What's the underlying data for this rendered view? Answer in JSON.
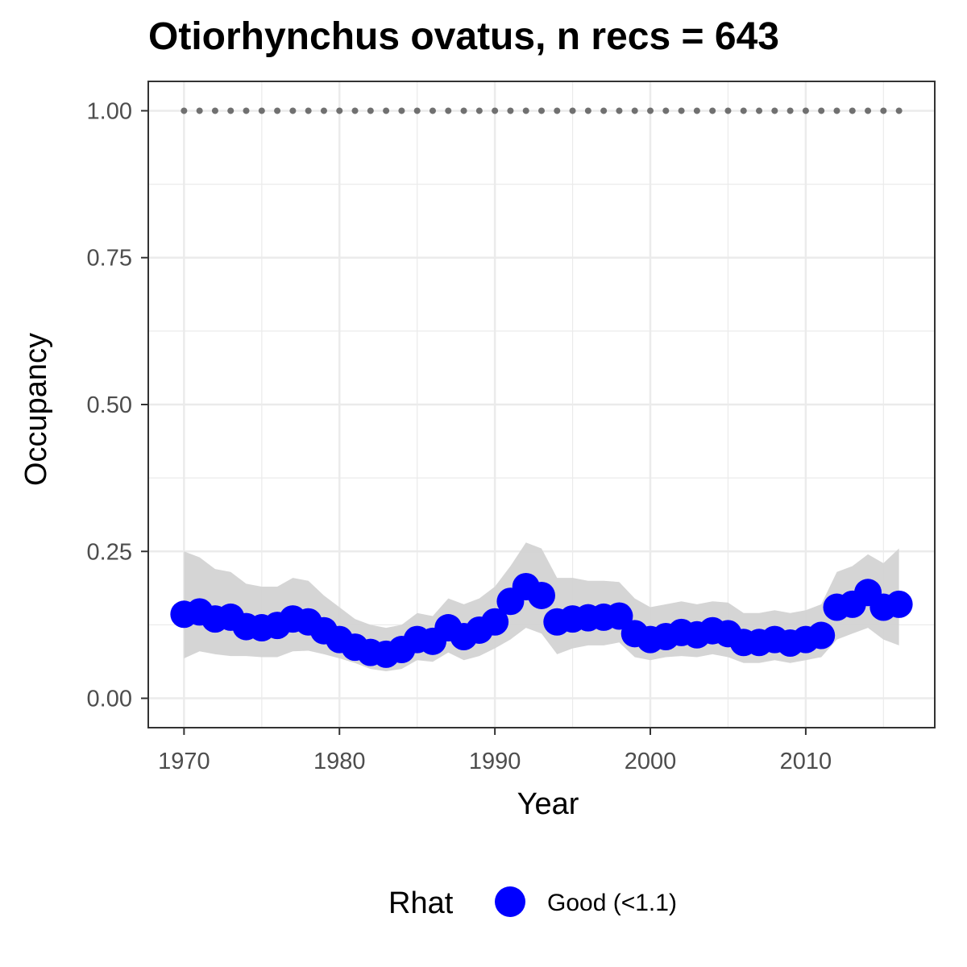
{
  "chart_data": {
    "type": "line",
    "title": "Otiorhynchus ovatus, n recs = 643",
    "xlabel": "Year",
    "ylabel": "Occupancy",
    "xlim": [
      1967.7,
      2018.3
    ],
    "ylim": [
      -0.05,
      1.05
    ],
    "x_ticks": [
      1970,
      1980,
      1990,
      2000,
      2010
    ],
    "x_tick_labels": [
      "1970",
      "1980",
      "1990",
      "2000",
      "2010"
    ],
    "y_ticks": [
      0,
      0.25,
      0.5,
      0.75,
      1.0
    ],
    "y_tick_labels": [
      "0.00",
      "0.25",
      "0.50",
      "0.75",
      "1.00"
    ],
    "grid": true,
    "x": [
      1970,
      1971,
      1972,
      1973,
      1974,
      1975,
      1976,
      1977,
      1978,
      1979,
      1980,
      1981,
      1982,
      1983,
      1984,
      1985,
      1986,
      1987,
      1988,
      1989,
      1990,
      1991,
      1992,
      1993,
      1994,
      1995,
      1996,
      1997,
      1998,
      1999,
      2000,
      2001,
      2002,
      2003,
      2004,
      2005,
      2006,
      2007,
      2008,
      2009,
      2010,
      2011,
      2012,
      2013,
      2014,
      2015,
      2016
    ],
    "series": [
      {
        "name": "Good (<1.1)",
        "color": "#0000ff",
        "values": [
          0.143,
          0.147,
          0.135,
          0.138,
          0.122,
          0.12,
          0.124,
          0.135,
          0.13,
          0.115,
          0.1,
          0.087,
          0.078,
          0.075,
          0.083,
          0.1,
          0.097,
          0.12,
          0.105,
          0.116,
          0.13,
          0.165,
          0.19,
          0.175,
          0.13,
          0.135,
          0.137,
          0.138,
          0.14,
          0.11,
          0.1,
          0.105,
          0.112,
          0.108,
          0.115,
          0.11,
          0.095,
          0.095,
          0.1,
          0.094,
          0.1,
          0.107,
          0.155,
          0.16,
          0.18,
          0.155,
          0.16
        ],
        "lower": [
          0.068,
          0.08,
          0.075,
          0.072,
          0.072,
          0.07,
          0.07,
          0.08,
          0.081,
          0.075,
          0.068,
          0.06,
          0.05,
          0.046,
          0.05,
          0.065,
          0.062,
          0.078,
          0.065,
          0.072,
          0.085,
          0.1,
          0.12,
          0.11,
          0.075,
          0.085,
          0.09,
          0.09,
          0.095,
          0.07,
          0.065,
          0.07,
          0.072,
          0.07,
          0.075,
          0.07,
          0.06,
          0.06,
          0.065,
          0.06,
          0.065,
          0.07,
          0.1,
          0.11,
          0.12,
          0.1,
          0.09
        ],
        "upper": [
          0.25,
          0.24,
          0.22,
          0.215,
          0.195,
          0.19,
          0.19,
          0.205,
          0.2,
          0.175,
          0.155,
          0.135,
          0.125,
          0.12,
          0.125,
          0.145,
          0.14,
          0.17,
          0.16,
          0.17,
          0.19,
          0.225,
          0.265,
          0.255,
          0.205,
          0.205,
          0.2,
          0.2,
          0.198,
          0.17,
          0.155,
          0.16,
          0.165,
          0.16,
          0.165,
          0.163,
          0.145,
          0.145,
          0.15,
          0.145,
          0.15,
          0.16,
          0.215,
          0.225,
          0.245,
          0.23,
          0.255
        ]
      },
      {
        "name": "",
        "color": "#707070",
        "values": [
          1,
          1,
          1,
          1,
          1,
          1,
          1,
          1,
          1,
          1,
          1,
          1,
          1,
          1,
          1,
          1,
          1,
          1,
          1,
          1,
          1,
          1,
          1,
          1,
          1,
          1,
          1,
          1,
          1,
          1,
          1,
          1,
          1,
          1,
          1,
          1,
          1,
          1,
          1,
          1,
          1,
          1,
          1,
          1,
          1,
          1,
          1
        ]
      }
    ],
    "ribbon_color": "#d3d3d3",
    "legend": {
      "title": "Rhat",
      "position": "bottom",
      "entries": [
        {
          "label": "Good (<1.1)",
          "color": "#0000ff"
        }
      ]
    }
  }
}
